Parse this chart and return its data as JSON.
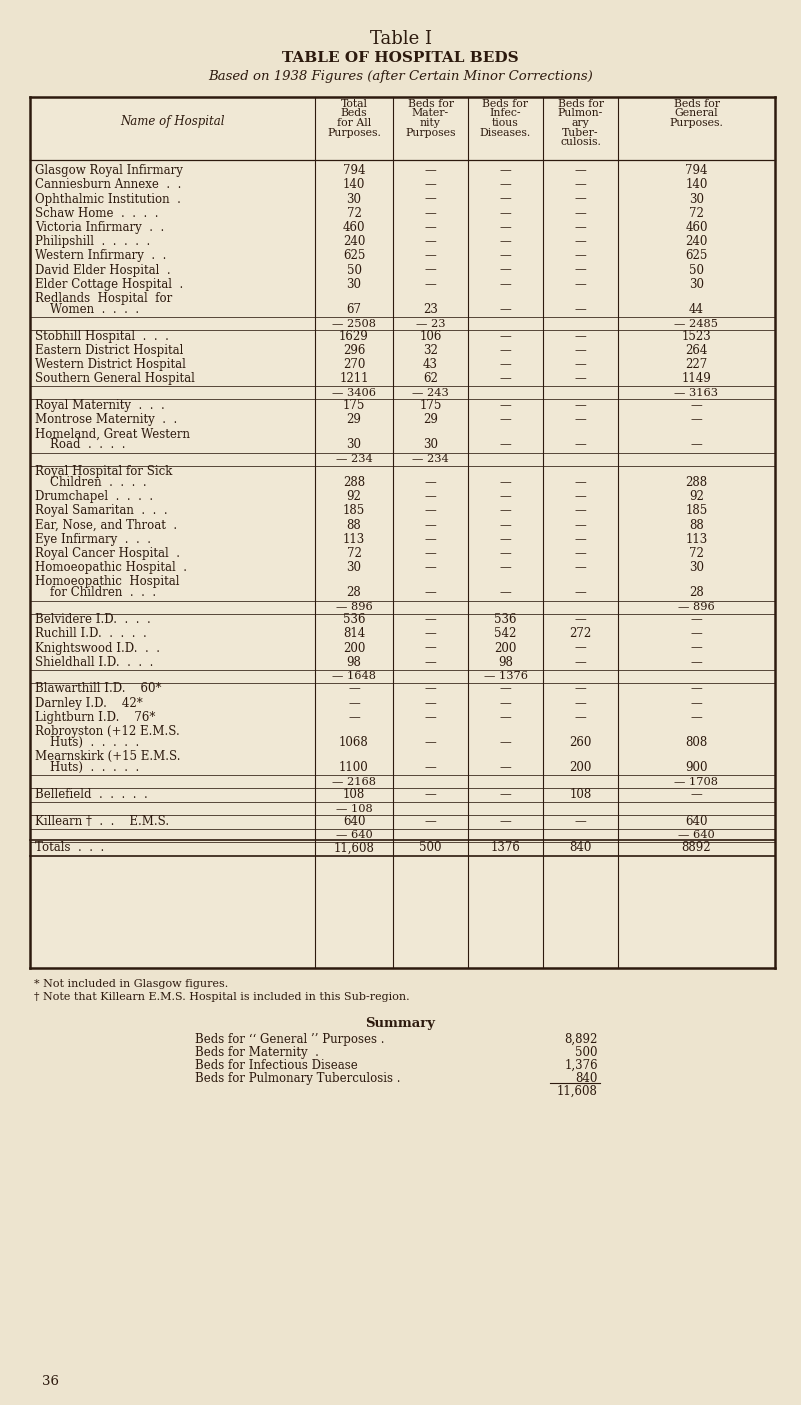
{
  "title1": "Table I",
  "title2": "TABLE OF HOSPITAL BEDS",
  "title3": "Based on 1938 Figures (after Certain Minor Corrections)",
  "bg_color": "#ede4cf",
  "table_bg": "#f0e8d5",
  "text_color": "#2d1a0e",
  "line_color": "#2d1a0e",
  "rows": [
    {
      "name": "Glasgow Royal Infirmary",
      "total": "794",
      "mat": "—",
      "inf": "—",
      "tb": "—",
      "gen": "794",
      "type": "normal"
    },
    {
      "name": "Canniesburn Annexe  .  .",
      "total": "140",
      "mat": "—",
      "inf": "—",
      "tb": "—",
      "gen": "140",
      "type": "normal"
    },
    {
      "name": "Ophthalmic Institution  .",
      "total": "30",
      "mat": "—",
      "inf": "—",
      "tb": "—",
      "gen": "30",
      "type": "normal"
    },
    {
      "name": "Schaw Home  .  .  .  .",
      "total": "72",
      "mat": "—",
      "inf": "—",
      "tb": "—",
      "gen": "72",
      "type": "normal"
    },
    {
      "name": "Victoria Infirmary  .  .",
      "total": "460",
      "mat": "—",
      "inf": "—",
      "tb": "—",
      "gen": "460",
      "type": "normal"
    },
    {
      "name": "Philipshill  .  .  .  .  .",
      "total": "240",
      "mat": "—",
      "inf": "—",
      "tb": "—",
      "gen": "240",
      "type": "normal"
    },
    {
      "name": "Western Infirmary  .  .",
      "total": "625",
      "mat": "—",
      "inf": "—",
      "tb": "—",
      "gen": "625",
      "type": "normal"
    },
    {
      "name": "David Elder Hospital  .",
      "total": "50",
      "mat": "—",
      "inf": "—",
      "tb": "—",
      "gen": "50",
      "type": "normal"
    },
    {
      "name": "Elder Cottage Hospital  .",
      "total": "30",
      "mat": "—",
      "inf": "—",
      "tb": "—",
      "gen": "30",
      "type": "normal"
    },
    {
      "name": "Redlands  Hospital  for",
      "total": "",
      "mat": "",
      "inf": "",
      "tb": "",
      "gen": "",
      "type": "cont_top"
    },
    {
      "name": "    Women  .  .  .  .",
      "total": "67",
      "mat": "23",
      "inf": "—",
      "tb": "—",
      "gen": "44",
      "type": "cont_bot"
    },
    {
      "name": "",
      "total": "— 2508",
      "mat": "— 23",
      "inf": "",
      "tb": "",
      "gen": "— 2485",
      "type": "subtotal"
    },
    {
      "name": "Stobhill Hospital  .  .  .",
      "total": "1629",
      "mat": "106",
      "inf": "—",
      "tb": "—",
      "gen": "1523",
      "type": "normal"
    },
    {
      "name": "Eastern District Hospital",
      "total": "296",
      "mat": "32",
      "inf": "—",
      "tb": "—",
      "gen": "264",
      "type": "normal"
    },
    {
      "name": "Western District Hospital",
      "total": "270",
      "mat": "43",
      "inf": "—",
      "tb": "—",
      "gen": "227",
      "type": "normal"
    },
    {
      "name": "Southern General Hospital",
      "total": "1211",
      "mat": "62",
      "inf": "—",
      "tb": "—",
      "gen": "1149",
      "type": "normal"
    },
    {
      "name": "",
      "total": "— 3406",
      "mat": "— 243",
      "inf": "",
      "tb": "",
      "gen": "— 3163",
      "type": "subtotal"
    },
    {
      "name": "Royal Maternity  .  .  .",
      "total": "175",
      "mat": "175",
      "inf": "—",
      "tb": "—",
      "gen": "—",
      "type": "normal"
    },
    {
      "name": "Montrose Maternity  .  .",
      "total": "29",
      "mat": "29",
      "inf": "—",
      "tb": "—",
      "gen": "—",
      "type": "normal"
    },
    {
      "name": "Homeland, Great Western",
      "total": "",
      "mat": "",
      "inf": "",
      "tb": "",
      "gen": "",
      "type": "cont_top"
    },
    {
      "name": "    Road  .  .  .  .",
      "total": "30",
      "mat": "30",
      "inf": "—",
      "tb": "—",
      "gen": "—",
      "type": "cont_bot"
    },
    {
      "name": "",
      "total": "— 234",
      "mat": "— 234",
      "inf": "",
      "tb": "",
      "gen": "",
      "type": "subtotal"
    },
    {
      "name": "Royal Hospital for Sick",
      "total": "",
      "mat": "",
      "inf": "",
      "tb": "",
      "gen": "",
      "type": "cont_top"
    },
    {
      "name": "    Children  .  .  .  .",
      "total": "288",
      "mat": "—",
      "inf": "—",
      "tb": "—",
      "gen": "288",
      "type": "cont_bot"
    },
    {
      "name": "Drumchapel  .  .  .  .",
      "total": "92",
      "mat": "—",
      "inf": "—",
      "tb": "—",
      "gen": "92",
      "type": "normal"
    },
    {
      "name": "Royal Samaritan  .  .  .",
      "total": "185",
      "mat": "—",
      "inf": "—",
      "tb": "—",
      "gen": "185",
      "type": "normal"
    },
    {
      "name": "Ear, Nose, and Throat  .",
      "total": "88",
      "mat": "—",
      "inf": "—",
      "tb": "—",
      "gen": "88",
      "type": "normal"
    },
    {
      "name": "Eye Infirmary  .  .  .",
      "total": "113",
      "mat": "—",
      "inf": "—",
      "tb": "—",
      "gen": "113",
      "type": "normal"
    },
    {
      "name": "Royal Cancer Hospital  .",
      "total": "72",
      "mat": "—",
      "inf": "—",
      "tb": "—",
      "gen": "72",
      "type": "normal"
    },
    {
      "name": "Homoeopathic Hospital  .",
      "total": "30",
      "mat": "—",
      "inf": "—",
      "tb": "—",
      "gen": "30",
      "type": "normal"
    },
    {
      "name": "Homoeopathic  Hospital",
      "total": "",
      "mat": "",
      "inf": "",
      "tb": "",
      "gen": "",
      "type": "cont_top"
    },
    {
      "name": "    for Children  .  .  .",
      "total": "28",
      "mat": "—",
      "inf": "—",
      "tb": "—",
      "gen": "28",
      "type": "cont_bot"
    },
    {
      "name": "",
      "total": "— 896",
      "mat": "",
      "inf": "",
      "tb": "",
      "gen": "— 896",
      "type": "subtotal"
    },
    {
      "name": "Belvidere I.D.  .  .  .",
      "total": "536",
      "mat": "—",
      "inf": "536",
      "tb": "—",
      "gen": "—",
      "type": "normal"
    },
    {
      "name": "Ruchill I.D.  .  .  .  .",
      "total": "814",
      "mat": "—",
      "inf": "542",
      "tb": "272",
      "gen": "—",
      "type": "normal"
    },
    {
      "name": "Knightswood I.D.  .  .",
      "total": "200",
      "mat": "—",
      "inf": "200",
      "tb": "—",
      "gen": "—",
      "type": "normal"
    },
    {
      "name": "Shieldhall I.D.  .  .  .",
      "total": "98",
      "mat": "—",
      "inf": "98",
      "tb": "—",
      "gen": "—",
      "type": "normal"
    },
    {
      "name": "",
      "total": "— 1648",
      "mat": "",
      "inf": "— 1376",
      "tb": "",
      "gen": "",
      "type": "subtotal"
    },
    {
      "name": "Blawarthill I.D.    60*",
      "total": "—",
      "mat": "—",
      "inf": "—",
      "tb": "—",
      "gen": "—",
      "type": "normal"
    },
    {
      "name": "Darnley I.D.    42*",
      "total": "—",
      "mat": "—",
      "inf": "—",
      "tb": "—",
      "gen": "—",
      "type": "normal"
    },
    {
      "name": "Lightburn I.D.    76*",
      "total": "—",
      "mat": "—",
      "inf": "—",
      "tb": "—",
      "gen": "—",
      "type": "normal"
    },
    {
      "name": "Robroyston (+12 E.M.S.",
      "total": "",
      "mat": "",
      "inf": "",
      "tb": "",
      "gen": "",
      "type": "cont_top"
    },
    {
      "name": "    Huts)  .  .  .  .  .",
      "total": "1068",
      "mat": "—",
      "inf": "—",
      "tb": "260",
      "gen": "808",
      "type": "cont_bot"
    },
    {
      "name": "Mearnskirk (+15 E.M.S.",
      "total": "",
      "mat": "",
      "inf": "",
      "tb": "",
      "gen": "",
      "type": "cont_top"
    },
    {
      "name": "    Huts)  .  .  .  .  .",
      "total": "1100",
      "mat": "—",
      "inf": "—",
      "tb": "200",
      "gen": "900",
      "type": "cont_bot"
    },
    {
      "name": "",
      "total": "— 2168",
      "mat": "",
      "inf": "",
      "tb": "",
      "gen": "— 1708",
      "type": "subtotal"
    },
    {
      "name": "Bellefield  .  .  .  .  .",
      "total": "108",
      "mat": "—",
      "inf": "—",
      "tb": "108",
      "gen": "—",
      "type": "normal"
    },
    {
      "name": "",
      "total": "— 108",
      "mat": "",
      "inf": "",
      "tb": "",
      "gen": "",
      "type": "subtotal"
    },
    {
      "name": "Killearn †  .  .    E.M.S.",
      "total": "640",
      "mat": "—",
      "inf": "—",
      "tb": "—",
      "gen": "640",
      "type": "normal"
    },
    {
      "name": "",
      "total": "— 640",
      "mat": "",
      "inf": "",
      "tb": "",
      "gen": "— 640",
      "type": "subtotal"
    },
    {
      "name": "Totals  .  .  .",
      "total": "11,608",
      "mat": "500",
      "inf": "1376",
      "tb": "840",
      "gen": "8892",
      "type": "totals"
    }
  ],
  "footnote1": "* Not included in Glasgow figures.",
  "footnote2": "† Note that Killearn E.M.S. Hospital is included in this Sub-region.",
  "summary_title": "Summary",
  "summary_rows": [
    {
      "label": "Beds for ‘‘ General ’’ Purposes .",
      "value": "8,892"
    },
    {
      "label": "Beds for Maternity  .",
      "value": "500"
    },
    {
      "label": "Beds for Infectious Disease",
      "value": "1,376"
    },
    {
      "label": "Beds for Pulmonary Tuberculosis .",
      "value": "840"
    }
  ],
  "summary_total": "11,608",
  "page_num": "36"
}
